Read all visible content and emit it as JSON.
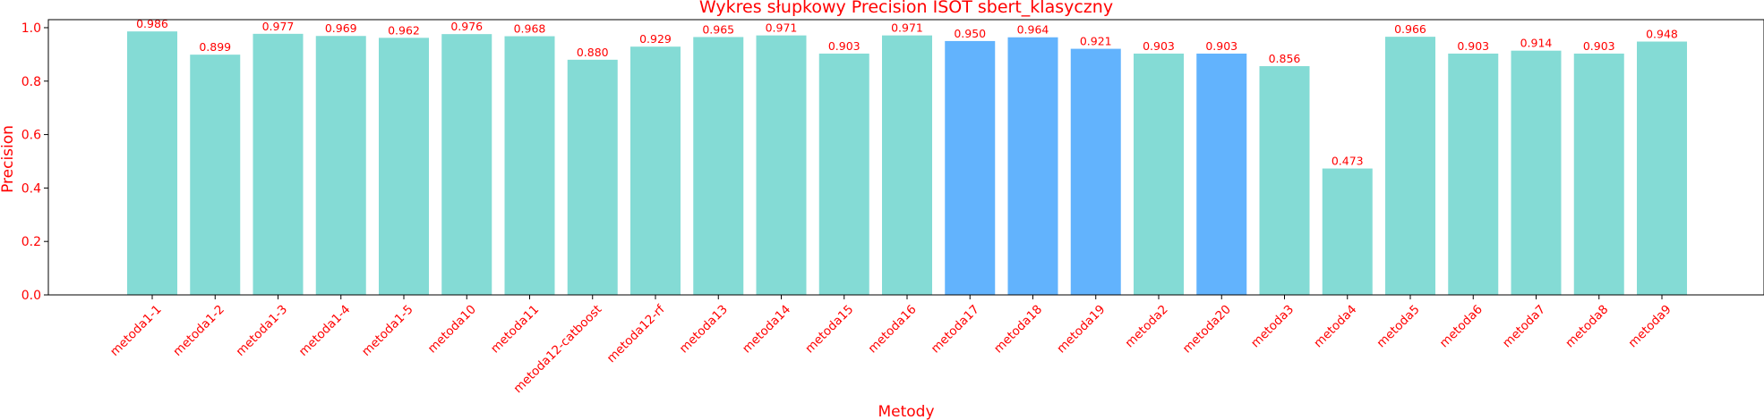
{
  "chart_data": {
    "type": "bar",
    "title": "Wykres słupkowy Precision ISOT sbert_klasyczny",
    "xlabel": "Metody",
    "ylabel": "Precision",
    "ylim": [
      0,
      1.03
    ],
    "yticks": [
      "0.0",
      "0.2",
      "0.4",
      "0.6",
      "0.8",
      "1.0"
    ],
    "grid": false,
    "legend": "none",
    "categories": [
      "metoda1-1",
      "metoda1-2",
      "metoda1-3",
      "metoda1-4",
      "metoda1-5",
      "metoda10",
      "metoda11",
      "metoda12-catboost",
      "metoda12-rf",
      "metoda13",
      "metoda14",
      "metoda15",
      "metoda16",
      "metoda17",
      "metoda18",
      "metoda19",
      "metoda2",
      "metoda20",
      "metoda3",
      "metoda4",
      "metoda5",
      "metoda6",
      "metoda7",
      "metoda8",
      "metoda9"
    ],
    "values": [
      0.986,
      0.899,
      0.977,
      0.969,
      0.962,
      0.976,
      0.968,
      0.88,
      0.929,
      0.965,
      0.971,
      0.903,
      0.971,
      0.95,
      0.964,
      0.921,
      0.903,
      0.903,
      0.856,
      0.473,
      0.966,
      0.903,
      0.914,
      0.903,
      0.948
    ],
    "value_labels": [
      "0.986",
      "0.899",
      "0.977",
      "0.969",
      "0.962",
      "0.976",
      "0.968",
      "0.880",
      "0.929",
      "0.965",
      "0.971",
      "0.903",
      "0.971",
      "0.950",
      "0.964",
      "0.921",
      "0.903",
      "0.903",
      "0.856",
      "0.473",
      "0.966",
      "0.903",
      "0.914",
      "0.903",
      "0.948"
    ],
    "highlighted": [
      "metoda17",
      "metoda18",
      "metoda19",
      "metoda20"
    ],
    "colors": {
      "bar": "#84dbd5",
      "highlight": "#62b3fd",
      "text": "#ff0000",
      "axis": "#000000"
    }
  }
}
